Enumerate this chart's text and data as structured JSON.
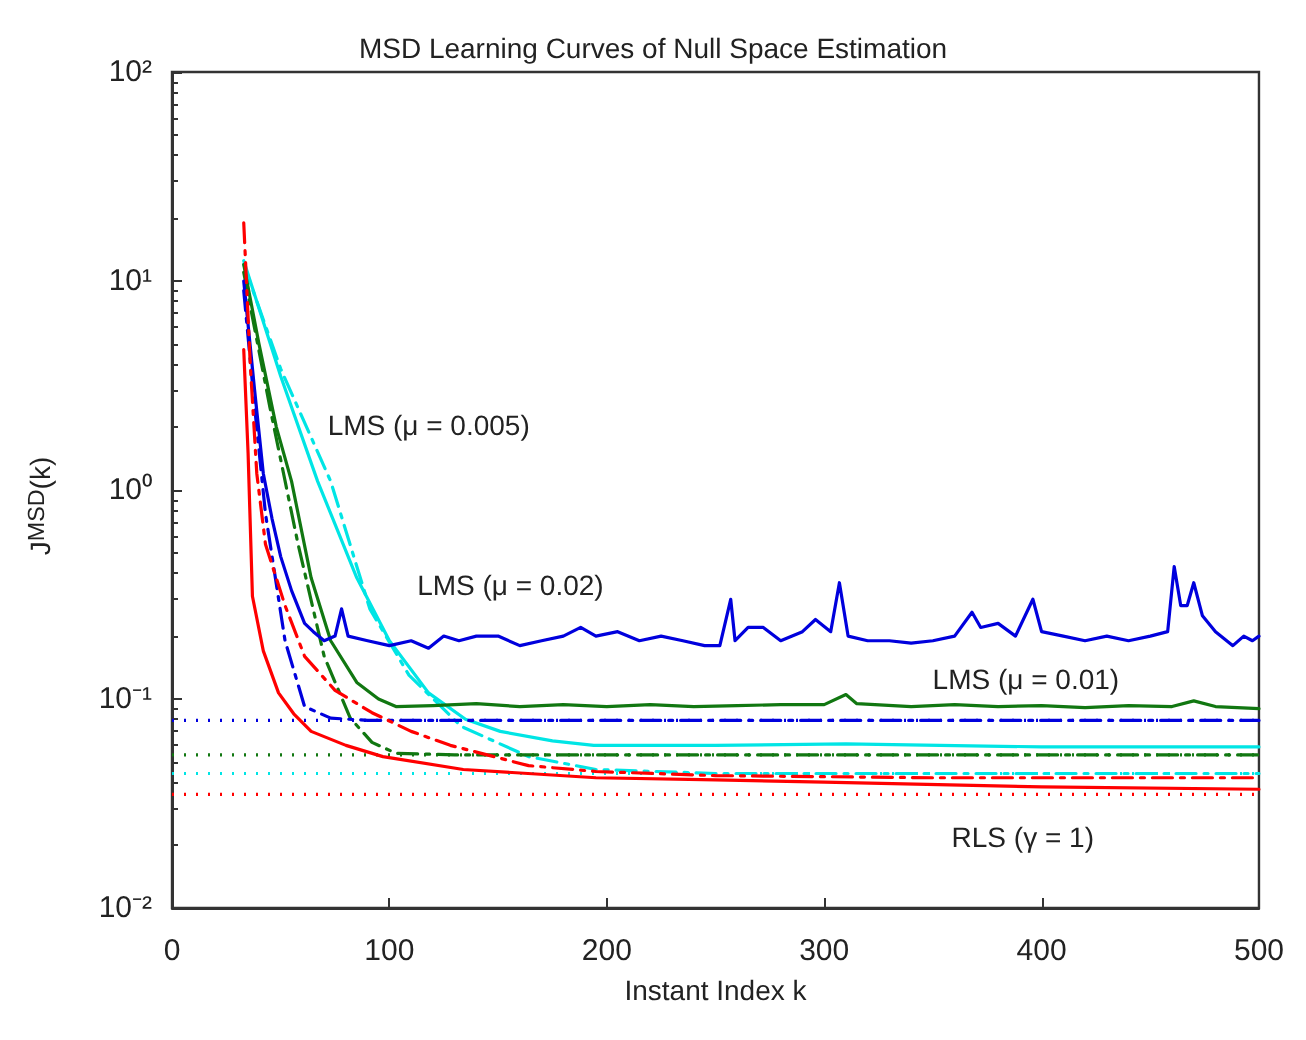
{
  "chart_data": {
    "type": "line",
    "title": "MSD Learning Curves of Null Space Estimation",
    "xlabel": "Instant Index k",
    "ylabel": "J$^{MSD}$(k)",
    "log": "y",
    "grid": false,
    "legend": false,
    "marker": "none",
    "xlim": [
      0,
      500
    ],
    "xticks": [
      0,
      100,
      200,
      300,
      400,
      500
    ],
    "ylim": [
      0.01,
      100
    ],
    "yticks": [
      {
        "value": 0.01,
        "label": "10⁻²"
      },
      {
        "value": 0.1,
        "label": "10⁻¹"
      },
      {
        "value": 1,
        "label": "10⁰"
      },
      {
        "value": 10,
        "label": "10¹"
      },
      {
        "value": 100,
        "label": "10²"
      }
    ],
    "series": [
      {
        "name": "LMS (μ = 0.005)",
        "color": "#00e5e5",
        "line_style": "solid",
        "x": [
          33,
          50,
          67,
          85,
          100,
          118,
          135,
          151,
          175,
          194,
          250,
          310,
          400,
          500
        ],
        "values": [
          12.5,
          3.5,
          1.1,
          0.38,
          0.19,
          0.107,
          0.08,
          0.07,
          0.063,
          0.06,
          0.06,
          0.061,
          0.059,
          0.059
        ]
      },
      {
        "color": "#00e5e5",
        "line_style": "dashed",
        "x": [
          33,
          50,
          73,
          91,
          109,
          133,
          164,
          195,
          250,
          500
        ],
        "values": [
          12,
          3.8,
          1.1,
          0.27,
          0.13,
          0.074,
          0.053,
          0.046,
          0.044,
          0.044
        ]
      },
      {
        "name": "LMS (μ = 0.01)",
        "color": "#117711",
        "line_style": "solid",
        "x": [
          33,
          40,
          48,
          55,
          64,
          73,
          85,
          95,
          103,
          120,
          140,
          160,
          180,
          200,
          220,
          240,
          260,
          280,
          300,
          310,
          315,
          340,
          360,
          380,
          400,
          420,
          440,
          460,
          470,
          480,
          500
        ],
        "values": [
          12,
          5,
          2,
          1.1,
          0.38,
          0.19,
          0.12,
          0.1,
          0.092,
          0.093,
          0.095,
          0.092,
          0.094,
          0.092,
          0.094,
          0.092,
          0.093,
          0.094,
          0.094,
          0.105,
          0.095,
          0.092,
          0.094,
          0.092,
          0.093,
          0.091,
          0.093,
          0.092,
          0.098,
          0.092,
          0.09
        ]
      },
      {
        "color": "#117711",
        "line_style": "dashed",
        "x": [
          33,
          45,
          58,
          70,
          82,
          92,
          103,
          130,
          500
        ],
        "values": [
          11,
          2.5,
          0.55,
          0.16,
          0.081,
          0.062,
          0.055,
          0.054,
          0.054
        ]
      },
      {
        "name": "LMS (μ = 0.02)",
        "color": "#0000dd",
        "line_style": "solid",
        "x": [
          33,
          38,
          42,
          46,
          50,
          55,
          61,
          65,
          70,
          75,
          78,
          81,
          90,
          100,
          110,
          118,
          125,
          132,
          140,
          150,
          160,
          170,
          180,
          188,
          195,
          205,
          215,
          225,
          235,
          245,
          252,
          257,
          259,
          265,
          272,
          280,
          290,
          296,
          303,
          307,
          311,
          320,
          330,
          340,
          350,
          360,
          368,
          372,
          380,
          388,
          396,
          400,
          410,
          420,
          430,
          440,
          450,
          458,
          461,
          464,
          467,
          470,
          474,
          480,
          488,
          493,
          497,
          500
        ],
        "values": [
          10,
          3,
          1.2,
          0.73,
          0.48,
          0.33,
          0.23,
          0.21,
          0.19,
          0.2,
          0.27,
          0.2,
          0.19,
          0.18,
          0.19,
          0.175,
          0.2,
          0.19,
          0.2,
          0.2,
          0.18,
          0.19,
          0.2,
          0.22,
          0.2,
          0.21,
          0.19,
          0.2,
          0.19,
          0.18,
          0.18,
          0.3,
          0.19,
          0.22,
          0.22,
          0.19,
          0.21,
          0.24,
          0.21,
          0.36,
          0.2,
          0.19,
          0.19,
          0.185,
          0.19,
          0.2,
          0.26,
          0.22,
          0.23,
          0.2,
          0.3,
          0.21,
          0.2,
          0.19,
          0.2,
          0.19,
          0.2,
          0.21,
          0.43,
          0.28,
          0.28,
          0.36,
          0.25,
          0.21,
          0.18,
          0.2,
          0.19,
          0.2
        ]
      },
      {
        "color": "#0000dd",
        "line_style": "dashed",
        "x": [
          33,
          38,
          43,
          52,
          61,
          73,
          90,
          500
        ],
        "values": [
          9,
          2.5,
          0.77,
          0.19,
          0.092,
          0.081,
          0.079,
          0.079
        ]
      },
      {
        "name": "RLS (γ = 1)",
        "color": "#ff0000",
        "line_style": "solid",
        "x": [
          33,
          35,
          37,
          42,
          49,
          56,
          64,
          80,
          97,
          134,
          195,
          250,
          300,
          400,
          500
        ],
        "values": [
          4.7,
          1.5,
          0.31,
          0.17,
          0.107,
          0.085,
          0.07,
          0.06,
          0.053,
          0.046,
          0.042,
          0.041,
          0.04,
          0.038,
          0.037
        ]
      },
      {
        "color": "#ff0000",
        "line_style": "dashed",
        "x": [
          33,
          36,
          39,
          43,
          52,
          61,
          75,
          92,
          110,
          128,
          164,
          195,
          250,
          350,
          500
        ],
        "values": [
          19,
          4,
          1.2,
          0.55,
          0.28,
          0.16,
          0.11,
          0.086,
          0.07,
          0.06,
          0.048,
          0.045,
          0.043,
          0.042,
          0.042
        ]
      }
    ],
    "ref_lines": [
      {
        "axis": "y",
        "value": 0.079,
        "color": "#0000dd",
        "line_style": "dotted"
      },
      {
        "axis": "y",
        "value": 0.054,
        "color": "#117711",
        "line_style": "dotted"
      },
      {
        "axis": "y",
        "value": 0.044,
        "color": "#00e5e5",
        "line_style": "dotted"
      },
      {
        "axis": "y",
        "value": 0.035,
        "color": "#ff0000",
        "line_style": "dotted"
      }
    ]
  }
}
